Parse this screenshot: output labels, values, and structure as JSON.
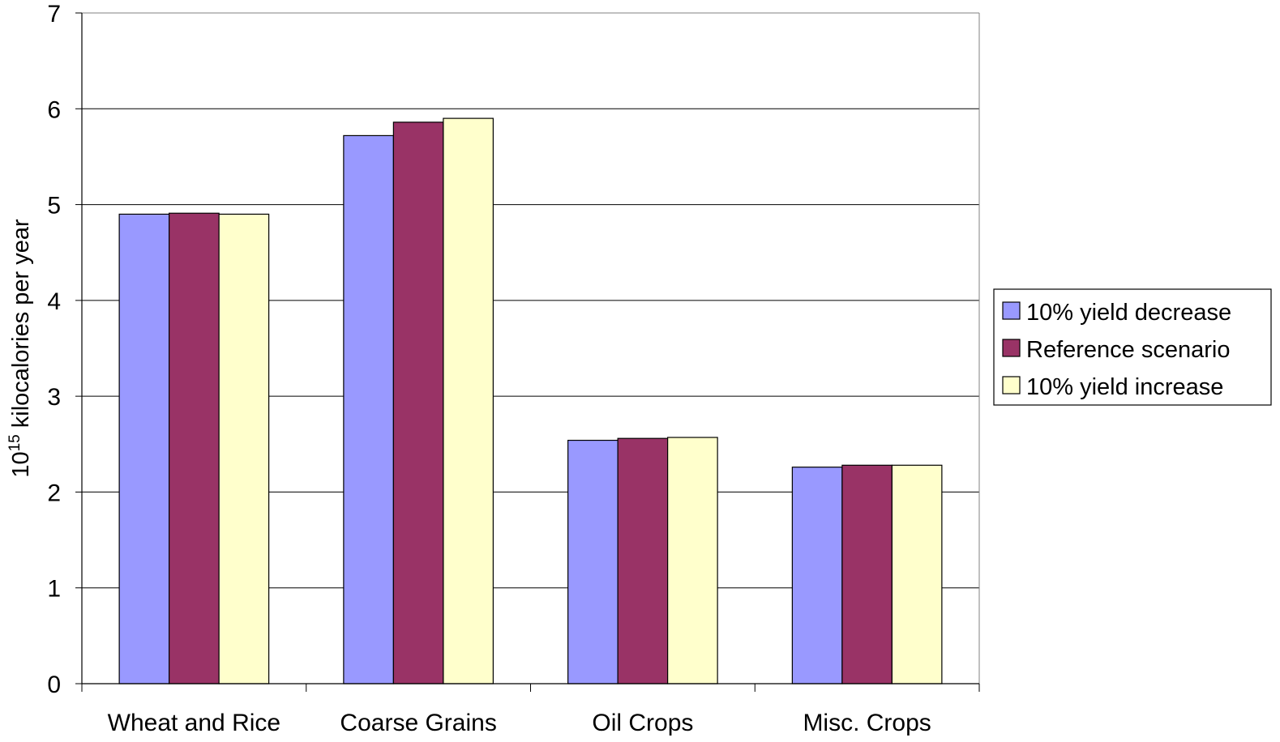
{
  "chart_data": {
    "type": "bar",
    "categories": [
      "Wheat and Rice",
      "Coarse Grains",
      "Oil Crops",
      "Misc. Crops"
    ],
    "series": [
      {
        "name": "10% yield decrease",
        "color": "#9999ff",
        "values": [
          4.9,
          5.72,
          2.54,
          2.26
        ]
      },
      {
        "name": "Reference scenario",
        "color": "#993366",
        "values": [
          4.91,
          5.86,
          2.56,
          2.28
        ]
      },
      {
        "name": "10% yield increase",
        "color": "#ffffcc",
        "values": [
          4.9,
          5.9,
          2.57,
          2.28
        ]
      }
    ],
    "ylabel_base": "10",
    "ylabel_exp": "15",
    "ylabel_rest": " kilocalories per year",
    "ylim": [
      0,
      7
    ],
    "yticks": [
      "0",
      "1",
      "2",
      "3",
      "4",
      "5",
      "6",
      "7"
    ],
    "grid": true,
    "legend": "right"
  }
}
